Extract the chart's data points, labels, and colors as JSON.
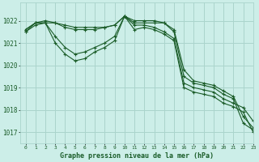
{
  "title": "Graphe pression niveau de la mer (hPa)",
  "bg_color": "#cceee8",
  "grid_color": "#aad4cc",
  "line_color": "#1a5c28",
  "xlim": [
    -0.5,
    23
  ],
  "ylim": [
    1016.5,
    1022.8
  ],
  "yticks": [
    1017,
    1018,
    1019,
    1020,
    1021,
    1022
  ],
  "xticks": [
    0,
    1,
    2,
    3,
    4,
    5,
    6,
    7,
    8,
    9,
    10,
    11,
    12,
    13,
    14,
    15,
    16,
    17,
    18,
    19,
    20,
    21,
    22,
    23
  ],
  "series": [
    [
      1021.6,
      1021.9,
      1021.9,
      1021.9,
      1021.8,
      1021.7,
      1021.7,
      1021.7,
      1021.7,
      1021.8,
      1022.2,
      1021.9,
      1021.9,
      1021.9,
      1021.9,
      1021.5,
      1019.5,
      1019.2,
      1019.1,
      1019.0,
      1018.7,
      1018.5,
      1017.4,
      1017.1
    ],
    [
      1021.6,
      1021.9,
      1022.0,
      1021.9,
      1021.7,
      1021.6,
      1021.6,
      1021.6,
      1021.7,
      1021.8,
      1022.2,
      1022.0,
      1022.0,
      1022.0,
      1021.9,
      1021.6,
      1019.8,
      1019.3,
      1019.2,
      1019.1,
      1018.85,
      1018.6,
      1017.7,
      1017.2
    ],
    [
      1021.5,
      1021.9,
      1021.9,
      1021.3,
      1020.8,
      1020.5,
      1020.6,
      1020.8,
      1021.0,
      1021.3,
      1022.2,
      1021.8,
      1021.8,
      1021.7,
      1021.5,
      1021.2,
      1019.2,
      1019.0,
      1018.9,
      1018.8,
      1018.5,
      1018.3,
      1018.1,
      1017.5
    ],
    [
      1021.5,
      1021.8,
      1021.9,
      1021.0,
      1020.5,
      1020.2,
      1020.3,
      1020.6,
      1020.8,
      1021.1,
      1022.2,
      1021.6,
      1021.7,
      1021.6,
      1021.4,
      1021.1,
      1019.0,
      1018.8,
      1018.7,
      1018.6,
      1018.3,
      1018.15,
      1017.9,
      1017.0
    ]
  ]
}
